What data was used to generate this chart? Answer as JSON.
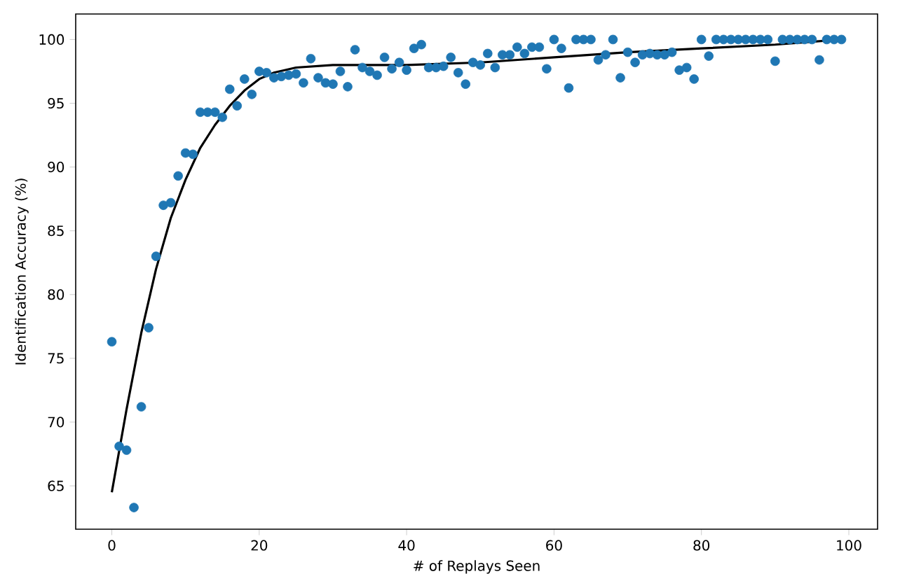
{
  "chart_data": {
    "type": "scatter",
    "xlabel": "# of Replays Seen",
    "ylabel": "Identification Accuracy (%)",
    "xlim": [
      -4.9,
      103.9
    ],
    "ylim": [
      61.6,
      102.0
    ],
    "xticks": [
      0,
      20,
      40,
      60,
      80,
      100
    ],
    "yticks": [
      65,
      70,
      75,
      80,
      85,
      90,
      95,
      100
    ],
    "grid": false,
    "marker": "circle",
    "series": [
      {
        "color": "#1f77b4",
        "x": [
          0,
          1,
          2,
          3,
          4,
          5,
          6,
          7,
          8,
          9,
          10,
          11,
          12,
          13,
          14,
          15,
          16,
          17,
          18,
          19,
          20,
          21,
          22,
          23,
          24,
          25,
          26,
          27,
          28,
          29,
          30,
          31,
          32,
          33,
          34,
          35,
          36,
          37,
          38,
          39,
          40,
          41,
          42,
          43,
          44,
          45,
          46,
          47,
          48,
          49,
          50,
          51,
          52,
          53,
          54,
          55,
          56,
          57,
          58,
          59,
          60,
          61,
          62,
          63,
          64,
          65,
          66,
          67,
          68,
          69,
          70,
          71,
          72,
          73,
          74,
          75,
          76,
          77,
          78,
          79,
          80,
          81,
          82,
          83,
          84,
          85,
          86,
          87,
          88,
          89,
          90,
          91,
          92,
          93,
          94,
          95,
          96,
          97,
          98,
          99
        ],
        "values": [
          76.3,
          68.1,
          67.8,
          63.3,
          71.2,
          77.4,
          83.0,
          87.0,
          87.2,
          89.3,
          91.1,
          91.0,
          94.3,
          94.3,
          94.3,
          93.9,
          96.1,
          94.8,
          96.9,
          95.7,
          97.5,
          97.4,
          97.0,
          97.1,
          97.2,
          97.3,
          96.6,
          98.5,
          97.0,
          96.6,
          96.5,
          97.5,
          96.3,
          99.2,
          97.8,
          97.5,
          97.2,
          98.6,
          97.7,
          98.2,
          97.6,
          99.3,
          99.6,
          97.8,
          97.8,
          97.9,
          98.6,
          97.4,
          96.5,
          98.2,
          98.0,
          98.9,
          97.8,
          98.8,
          98.8,
          99.4,
          98.9,
          99.4,
          99.4,
          97.7,
          100,
          99.3,
          96.2,
          100,
          100,
          100,
          98.4,
          98.8,
          100,
          97.0,
          99.0,
          98.2,
          98.8,
          98.9,
          98.8,
          98.8,
          99.0,
          97.6,
          97.8,
          96.9,
          100,
          98.7,
          100,
          100,
          100,
          100,
          100,
          100,
          100,
          100,
          98.3,
          100,
          100,
          100,
          100,
          100,
          98.4,
          100,
          100,
          100
        ]
      },
      {
        "type": "line",
        "color": "#000000",
        "line_style": "solid",
        "marker": "none",
        "x": [
          0,
          2,
          4,
          6,
          8,
          10,
          12,
          14,
          16,
          18,
          20,
          22,
          25,
          30,
          40,
          50,
          60,
          70,
          80,
          90,
          99
        ],
        "values": [
          64.5,
          71.0,
          77.0,
          82.0,
          86.0,
          89.0,
          91.5,
          93.3,
          94.8,
          96.0,
          96.9,
          97.4,
          97.8,
          98.0,
          98.0,
          98.2,
          98.6,
          99.0,
          99.3,
          99.6,
          100.0
        ]
      }
    ]
  }
}
